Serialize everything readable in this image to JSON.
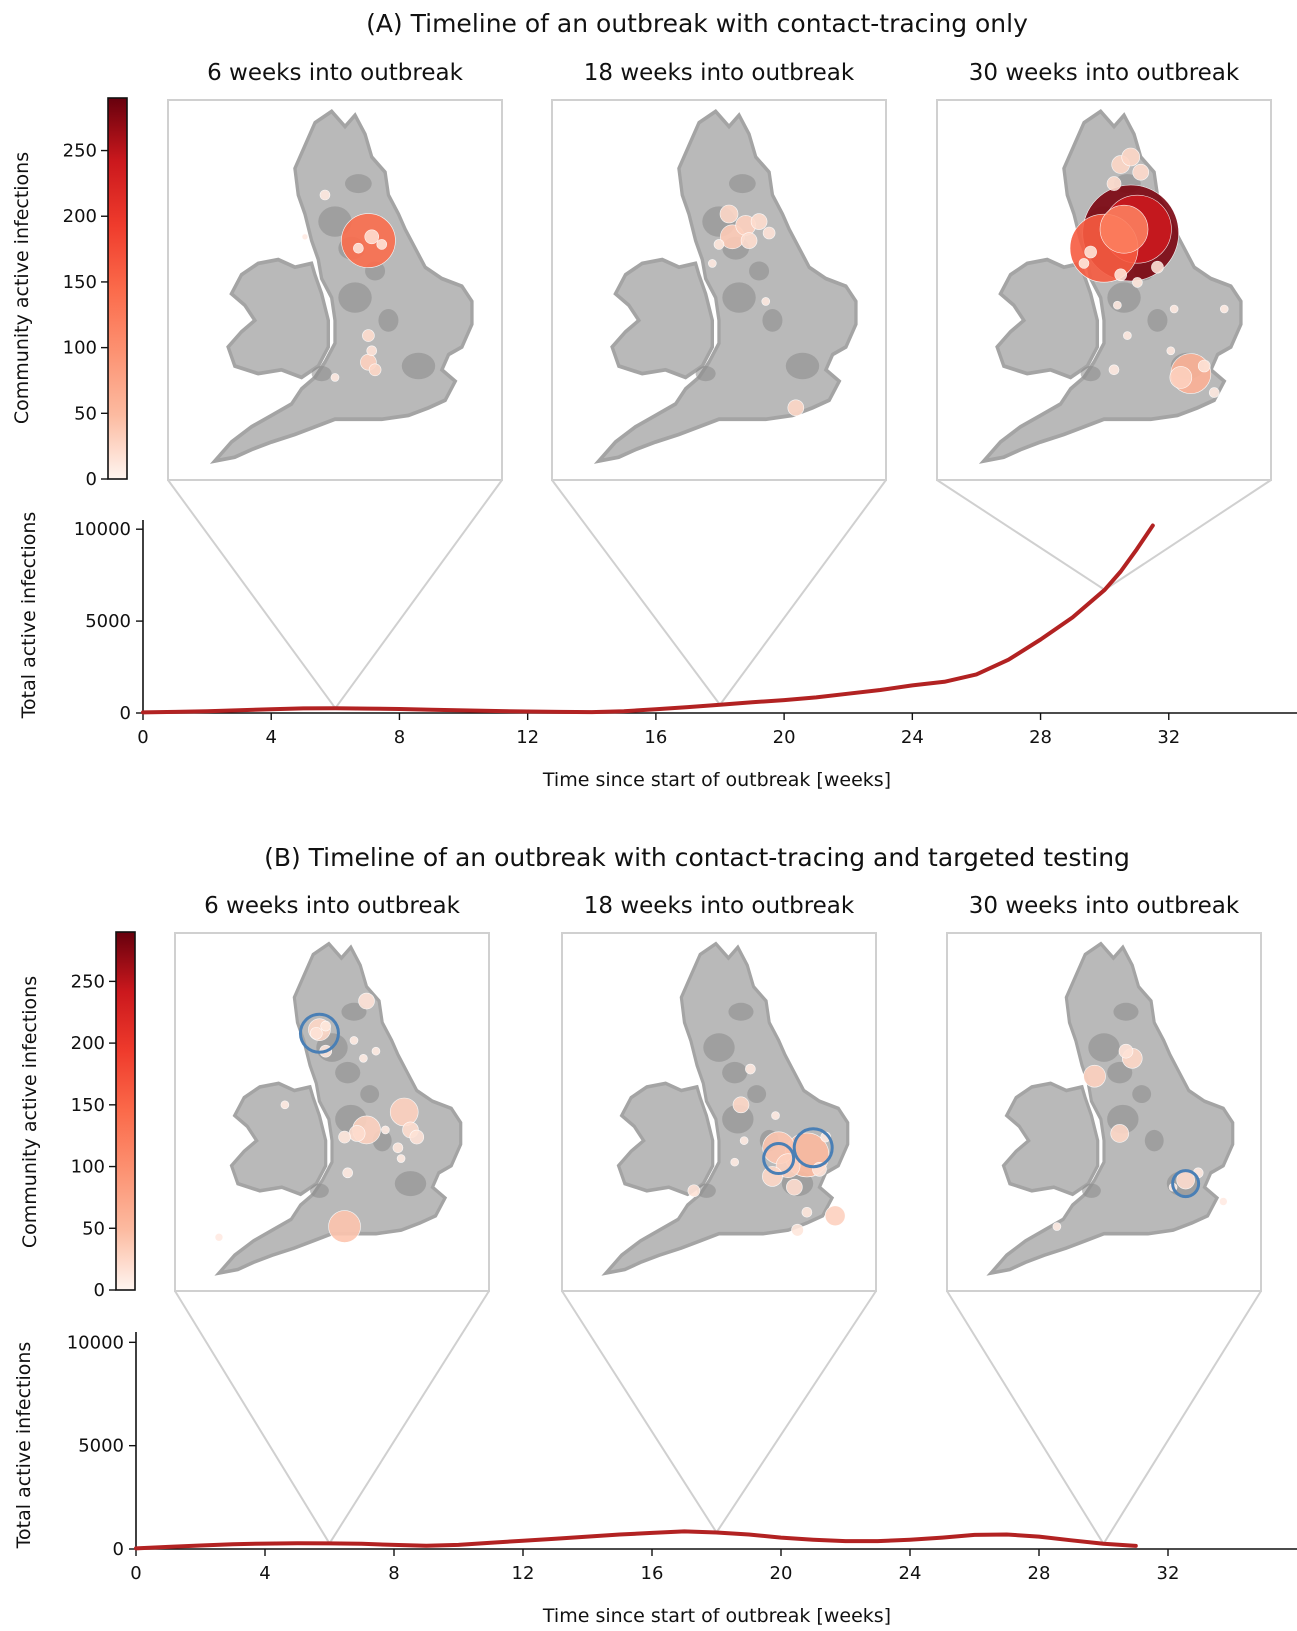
{
  "colors": {
    "line": "#b22222",
    "frame": "#d0d0d0",
    "land": "#b9b9b9",
    "targeted_ring": "#4a7fb5",
    "colormap_stops": [
      "#fff5f0",
      "#fcbba1",
      "#fc9272",
      "#fb6a4a",
      "#ef3b2c",
      "#cb181d",
      "#67000d"
    ]
  },
  "chart_data": [
    {
      "id": "A",
      "type": "line",
      "title": "(A) Timeline of an outbreak with contact-tracing only",
      "xlabel": "Time since start of outbreak [weeks]",
      "ylabel": "Total active infections",
      "xlim": [
        0,
        36
      ],
      "ylim": [
        0,
        10500
      ],
      "xticks": [
        0,
        4,
        8,
        12,
        16,
        20,
        24,
        28,
        32
      ],
      "yticks": [
        0,
        5000,
        10000
      ],
      "series": [
        {
          "x": [
            0,
            1,
            2,
            3,
            4,
            5,
            6,
            7,
            8,
            9,
            10,
            11,
            12,
            13,
            14,
            15,
            16,
            17,
            18,
            19,
            20,
            21,
            22,
            23,
            24,
            25,
            26,
            27,
            28,
            29,
            30,
            30.5,
            31,
            31.5
          ],
          "y": [
            30,
            60,
            100,
            150,
            200,
            250,
            260,
            240,
            220,
            180,
            140,
            110,
            80,
            60,
            50,
            100,
            200,
            320,
            450,
            580,
            700,
            850,
            1050,
            1250,
            1500,
            1700,
            2100,
            2900,
            4000,
            5200,
            6700,
            7700,
            8900,
            10200
          ]
        }
      ],
      "snapshots": [
        {
          "label": "6 weeks into outbreak",
          "week": 6,
          "bubbles": [
            {
              "x": 0.6,
              "y": 0.37,
              "r": 27,
              "v": 140
            },
            {
              "x": 0.61,
              "y": 0.36,
              "r": 7,
              "v": 20
            },
            {
              "x": 0.64,
              "y": 0.38,
              "r": 5,
              "v": 15
            },
            {
              "x": 0.57,
              "y": 0.39,
              "r": 5,
              "v": 15
            },
            {
              "x": 0.47,
              "y": 0.25,
              "r": 5,
              "v": 10
            },
            {
              "x": 0.41,
              "y": 0.36,
              "r": 3,
              "v": 8
            },
            {
              "x": 0.6,
              "y": 0.62,
              "r": 6,
              "v": 20
            },
            {
              "x": 0.61,
              "y": 0.66,
              "r": 5,
              "v": 15
            },
            {
              "x": 0.6,
              "y": 0.69,
              "r": 8,
              "v": 30
            },
            {
              "x": 0.62,
              "y": 0.71,
              "r": 6,
              "v": 25
            },
            {
              "x": 0.5,
              "y": 0.73,
              "r": 4,
              "v": 10
            }
          ],
          "targeted": []
        },
        {
          "label": "18 weeks into outbreak",
          "week": 18,
          "bubbles": [
            {
              "x": 0.53,
              "y": 0.3,
              "r": 9,
              "v": 25
            },
            {
              "x": 0.58,
              "y": 0.33,
              "r": 10,
              "v": 30
            },
            {
              "x": 0.54,
              "y": 0.36,
              "r": 12,
              "v": 35
            },
            {
              "x": 0.62,
              "y": 0.32,
              "r": 8,
              "v": 20
            },
            {
              "x": 0.59,
              "y": 0.37,
              "r": 8,
              "v": 20
            },
            {
              "x": 0.65,
              "y": 0.35,
              "r": 6,
              "v": 15
            },
            {
              "x": 0.5,
              "y": 0.38,
              "r": 5,
              "v": 12
            },
            {
              "x": 0.48,
              "y": 0.43,
              "r": 4,
              "v": 10
            },
            {
              "x": 0.64,
              "y": 0.53,
              "r": 4,
              "v": 10
            },
            {
              "x": 0.73,
              "y": 0.81,
              "r": 8,
              "v": 25
            }
          ],
          "targeted": []
        },
        {
          "label": "30 weeks into outbreak",
          "week": 30,
          "bubbles": [
            {
              "x": 0.58,
              "y": 0.35,
              "r": 48,
              "v": 280
            },
            {
              "x": 0.6,
              "y": 0.34,
              "r": 34,
              "v": 240
            },
            {
              "x": 0.5,
              "y": 0.39,
              "r": 34,
              "v": 160
            },
            {
              "x": 0.56,
              "y": 0.34,
              "r": 24,
              "v": 120
            },
            {
              "x": 0.55,
              "y": 0.17,
              "r": 9,
              "v": 25
            },
            {
              "x": 0.58,
              "y": 0.15,
              "r": 9,
              "v": 25
            },
            {
              "x": 0.53,
              "y": 0.22,
              "r": 7,
              "v": 20
            },
            {
              "x": 0.61,
              "y": 0.19,
              "r": 8,
              "v": 22
            },
            {
              "x": 0.46,
              "y": 0.4,
              "r": 6,
              "v": 15
            },
            {
              "x": 0.44,
              "y": 0.43,
              "r": 5,
              "v": 12
            },
            {
              "x": 0.55,
              "y": 0.46,
              "r": 6,
              "v": 15
            },
            {
              "x": 0.6,
              "y": 0.48,
              "r": 5,
              "v": 12
            },
            {
              "x": 0.66,
              "y": 0.44,
              "r": 6,
              "v": 15
            },
            {
              "x": 0.54,
              "y": 0.54,
              "r": 4,
              "v": 10
            },
            {
              "x": 0.71,
              "y": 0.55,
              "r": 4,
              "v": 10
            },
            {
              "x": 0.76,
              "y": 0.72,
              "r": 20,
              "v": 60
            },
            {
              "x": 0.73,
              "y": 0.73,
              "r": 11,
              "v": 30
            },
            {
              "x": 0.8,
              "y": 0.7,
              "r": 6,
              "v": 15
            },
            {
              "x": 0.83,
              "y": 0.77,
              "r": 5,
              "v": 10
            },
            {
              "x": 0.7,
              "y": 0.66,
              "r": 4,
              "v": 10
            },
            {
              "x": 0.57,
              "y": 0.62,
              "r": 4,
              "v": 10
            },
            {
              "x": 0.53,
              "y": 0.71,
              "r": 5,
              "v": 10
            },
            {
              "x": 0.86,
              "y": 0.55,
              "r": 4,
              "v": 8
            }
          ],
          "targeted": []
        }
      ]
    },
    {
      "id": "B",
      "type": "line",
      "title": "(B) Timeline of an outbreak with contact-tracing and targeted testing",
      "xlabel": "Time since start of outbreak [weeks]",
      "ylabel": "Total active infections",
      "xlim": [
        0,
        36
      ],
      "ylim": [
        0,
        10500
      ],
      "xticks": [
        0,
        4,
        8,
        12,
        16,
        20,
        24,
        28,
        32
      ],
      "yticks": [
        0,
        5000,
        10000
      ],
      "series": [
        {
          "x": [
            0,
            1,
            2,
            3,
            4,
            5,
            6,
            7,
            8,
            9,
            10,
            11,
            12,
            13,
            14,
            15,
            16,
            17,
            18,
            19,
            20,
            21,
            22,
            23,
            24,
            25,
            26,
            27,
            28,
            29,
            30,
            31
          ],
          "y": [
            30,
            100,
            170,
            230,
            260,
            280,
            270,
            250,
            200,
            160,
            200,
            300,
            400,
            500,
            600,
            700,
            780,
            850,
            800,
            700,
            550,
            450,
            380,
            380,
            450,
            550,
            680,
            700,
            600,
            420,
            250,
            150
          ]
        }
      ],
      "snapshots": [
        {
          "label": "6 weeks into outbreak",
          "week": 6,
          "bubbles": [
            {
              "x": 0.46,
              "y": 0.27,
              "r": 11,
              "v": 25
            },
            {
              "x": 0.45,
              "y": 0.28,
              "r": 6,
              "v": 15
            },
            {
              "x": 0.48,
              "y": 0.26,
              "r": 5,
              "v": 12
            },
            {
              "x": 0.48,
              "y": 0.33,
              "r": 6,
              "v": 12
            },
            {
              "x": 0.61,
              "y": 0.19,
              "r": 8,
              "v": 15
            },
            {
              "x": 0.57,
              "y": 0.3,
              "r": 4,
              "v": 8
            },
            {
              "x": 0.64,
              "y": 0.33,
              "r": 4,
              "v": 8
            },
            {
              "x": 0.6,
              "y": 0.35,
              "r": 4,
              "v": 8
            },
            {
              "x": 0.35,
              "y": 0.48,
              "r": 4,
              "v": 8
            },
            {
              "x": 0.61,
              "y": 0.55,
              "r": 14,
              "v": 30
            },
            {
              "x": 0.58,
              "y": 0.56,
              "r": 8,
              "v": 20
            },
            {
              "x": 0.67,
              "y": 0.55,
              "r": 4,
              "v": 8
            },
            {
              "x": 0.54,
              "y": 0.57,
              "r": 6,
              "v": 12
            },
            {
              "x": 0.73,
              "y": 0.5,
              "r": 14,
              "v": 30
            },
            {
              "x": 0.75,
              "y": 0.55,
              "r": 8,
              "v": 20
            },
            {
              "x": 0.77,
              "y": 0.57,
              "r": 7,
              "v": 15
            },
            {
              "x": 0.71,
              "y": 0.6,
              "r": 5,
              "v": 12
            },
            {
              "x": 0.72,
              "y": 0.63,
              "r": 4,
              "v": 8
            },
            {
              "x": 0.55,
              "y": 0.67,
              "r": 5,
              "v": 10
            },
            {
              "x": 0.54,
              "y": 0.82,
              "r": 16,
              "v": 40
            },
            {
              "x": 0.14,
              "y": 0.85,
              "r": 4,
              "v": 8
            }
          ],
          "targeted": [
            {
              "x": 0.46,
              "y": 0.28,
              "r": 19
            }
          ]
        },
        {
          "label": "18 weeks into outbreak",
          "week": 18,
          "bubbles": [
            {
              "x": 0.57,
              "y": 0.48,
              "r": 8,
              "v": 25
            },
            {
              "x": 0.69,
              "y": 0.6,
              "r": 16,
              "v": 40
            },
            {
              "x": 0.78,
              "y": 0.62,
              "r": 22,
              "v": 50
            },
            {
              "x": 0.72,
              "y": 0.65,
              "r": 12,
              "v": 30
            },
            {
              "x": 0.67,
              "y": 0.68,
              "r": 10,
              "v": 25
            },
            {
              "x": 0.74,
              "y": 0.71,
              "r": 8,
              "v": 20
            },
            {
              "x": 0.82,
              "y": 0.66,
              "r": 7,
              "v": 15
            },
            {
              "x": 0.84,
              "y": 0.57,
              "r": 5,
              "v": 10
            },
            {
              "x": 0.87,
              "y": 0.79,
              "r": 10,
              "v": 30
            },
            {
              "x": 0.78,
              "y": 0.78,
              "r": 5,
              "v": 12
            },
            {
              "x": 0.75,
              "y": 0.83,
              "r": 6,
              "v": 12
            },
            {
              "x": 0.42,
              "y": 0.72,
              "r": 6,
              "v": 15
            },
            {
              "x": 0.58,
              "y": 0.58,
              "r": 4,
              "v": 8
            },
            {
              "x": 0.6,
              "y": 0.38,
              "r": 5,
              "v": 10
            },
            {
              "x": 0.68,
              "y": 0.51,
              "r": 4,
              "v": 8
            },
            {
              "x": 0.55,
              "y": 0.64,
              "r": 4,
              "v": 8
            }
          ],
          "targeted": [
            {
              "x": 0.69,
              "y": 0.63,
              "r": 15
            },
            {
              "x": 0.8,
              "y": 0.6,
              "r": 19
            }
          ]
        },
        {
          "label": "30 weeks into outbreak",
          "week": 30,
          "bubbles": [
            {
              "x": 0.59,
              "y": 0.35,
              "r": 10,
              "v": 25
            },
            {
              "x": 0.57,
              "y": 0.33,
              "r": 7,
              "v": 15
            },
            {
              "x": 0.47,
              "y": 0.4,
              "r": 11,
              "v": 30
            },
            {
              "x": 0.55,
              "y": 0.56,
              "r": 9,
              "v": 25
            },
            {
              "x": 0.76,
              "y": 0.69,
              "r": 9,
              "v": 20
            },
            {
              "x": 0.8,
              "y": 0.67,
              "r": 5,
              "v": 10
            },
            {
              "x": 0.72,
              "y": 0.71,
              "r": 4,
              "v": 8
            },
            {
              "x": 0.88,
              "y": 0.75,
              "r": 4,
              "v": 8
            },
            {
              "x": 0.35,
              "y": 0.82,
              "r": 4,
              "v": 8
            }
          ],
          "targeted": [
            {
              "x": 0.76,
              "y": 0.7,
              "r": 13
            }
          ]
        }
      ]
    }
  ],
  "colorbar": {
    "label": "Community active infections",
    "ticks": [
      0,
      50,
      100,
      150,
      200,
      250
    ],
    "vmin": 0,
    "vmax": 290
  }
}
